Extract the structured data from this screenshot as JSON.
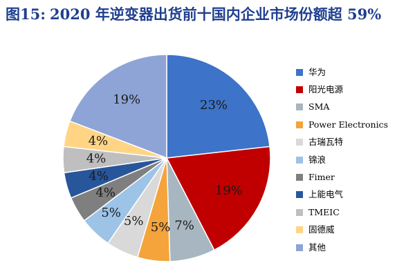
{
  "title": {
    "prefix": "图15:",
    "text": "2020 年逆变器出货前十国内企业市场份额超 59%"
  },
  "chart_data": {
    "type": "pie",
    "title": "",
    "slices": [
      {
        "label": "华为",
        "value": 23,
        "data_label": "23%",
        "color": "#3d73c8"
      },
      {
        "label": "阳光电源",
        "value": 19,
        "data_label": "19%",
        "color": "#c00000"
      },
      {
        "label": "SMA",
        "value": 7,
        "data_label": "7%",
        "color": "#a7b6c0"
      },
      {
        "label": "Power Electronics",
        "value": 5,
        "data_label": "5%",
        "color": "#f5a33b"
      },
      {
        "label": "古瑞瓦特",
        "value": 5,
        "data_label": "5%",
        "color": "#d9d9d9"
      },
      {
        "label": "锦浪",
        "value": 5,
        "data_label": "5%",
        "color": "#9dc3e6"
      },
      {
        "label": "Fimer",
        "value": 4,
        "data_label": "4%",
        "color": "#7f7f7f"
      },
      {
        "label": "上能电气",
        "value": 4,
        "data_label": "4%",
        "color": "#28569b"
      },
      {
        "label": "TMEIC",
        "value": 4,
        "data_label": "4%",
        "color": "#bfbfbf"
      },
      {
        "label": "固德威",
        "value": 4,
        "data_label": "4%",
        "color": "#ffd585"
      },
      {
        "label": "其他",
        "value": 19,
        "data_label": "19%",
        "color": "#8fa4d6"
      }
    ],
    "legend_position": "right"
  }
}
